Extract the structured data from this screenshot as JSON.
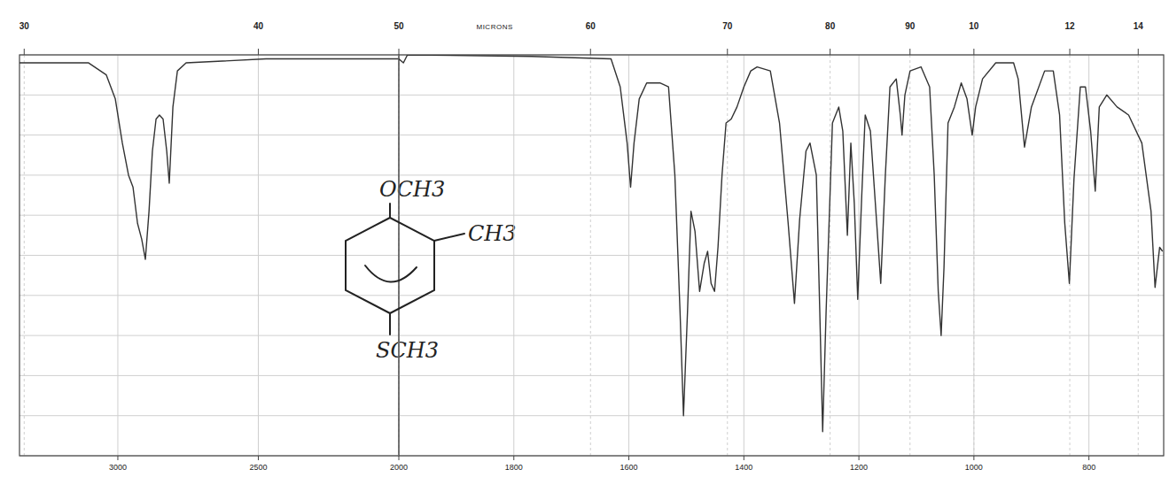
{
  "chart_data": [
    {
      "type": "line",
      "color": "#333333",
      "grid": true,
      "tick_labels": "x",
      "xlim": [
        3350,
        2000
      ],
      "ylim": [
        0,
        100
      ],
      "xticks": [
        3000,
        2500
      ],
      "x2ticks": [
        {
          "value": 3333.3,
          "label": "30"
        },
        {
          "value": 2500,
          "label": "40"
        }
      ],
      "yticks": [
        0,
        10,
        20,
        30,
        40,
        50,
        60,
        70,
        80,
        90,
        100
      ],
      "annotations": [
        "OCH3",
        "CH3",
        "SCH3"
      ],
      "x": [
        3350,
        3104,
        3041,
        3009,
        2984,
        2962,
        2946,
        2930,
        2915,
        2902,
        2889,
        2877,
        2864,
        2852,
        2839,
        2826,
        2817,
        2804,
        2788,
        2757,
        2473,
        2158,
        2000
      ],
      "values": [
        98,
        98,
        95,
        89,
        78,
        70,
        67,
        58,
        54,
        49,
        61,
        76,
        84,
        85,
        84,
        76,
        68,
        87,
        96,
        98,
        99,
        99,
        99
      ]
    },
    {
      "type": "line",
      "color": "#333333",
      "grid": true,
      "tick_labels": "x",
      "xlim": [
        2000,
        670
      ],
      "ylim": [
        0,
        100
      ],
      "xticks": [
        2000,
        1800,
        1600,
        1400,
        1200,
        1000,
        800
      ],
      "x2ticks": [
        {
          "value": 2000,
          "label": "50"
        },
        {
          "value": 1666.7,
          "label": "60"
        },
        {
          "value": 1428.6,
          "label": "70"
        },
        {
          "value": 1250,
          "label": "80"
        },
        {
          "value": 1111.1,
          "label": "90"
        },
        {
          "value": 1000,
          "label": "10"
        },
        {
          "value": 833.3,
          "label": "12"
        },
        {
          "value": 714.3,
          "label": "14"
        }
      ],
      "x2label": "MICRONS",
      "yticks": [
        0,
        10,
        20,
        30,
        40,
        50,
        60,
        70,
        80,
        90,
        100
      ],
      "x": [
        2000,
        1992,
        1985,
        1769,
        1631,
        1615,
        1603,
        1597,
        1591,
        1582,
        1569,
        1546,
        1531,
        1520,
        1511,
        1505,
        1498,
        1492,
        1485,
        1477,
        1469,
        1463,
        1457,
        1451,
        1445,
        1438,
        1431,
        1422,
        1412,
        1400,
        1388,
        1377,
        1354,
        1338,
        1323,
        1312,
        1303,
        1292,
        1285,
        1274,
        1268,
        1263,
        1257,
        1246,
        1235,
        1228,
        1220,
        1214,
        1208,
        1202,
        1195,
        1189,
        1180,
        1169,
        1162,
        1154,
        1146,
        1135,
        1128,
        1125,
        1120,
        1111,
        1092,
        1077,
        1069,
        1062,
        1057,
        1052,
        1045,
        1034,
        1022,
        1012,
        1003,
        997,
        985,
        962,
        931,
        923,
        912,
        900,
        877,
        862,
        851,
        842,
        834,
        826,
        815,
        806,
        797,
        789,
        782,
        769,
        751,
        731,
        708,
        692,
        685,
        677,
        672
      ],
      "values": [
        99,
        98,
        100,
        99.6,
        99,
        92,
        78,
        67,
        78,
        89,
        93,
        93,
        92,
        70,
        36,
        10,
        36,
        61,
        56,
        41,
        48,
        51,
        43,
        41,
        52,
        70,
        83,
        84,
        87,
        92,
        96,
        97,
        96,
        83,
        58,
        38,
        59,
        76,
        78,
        70,
        36,
        6,
        36,
        83,
        87,
        81,
        55,
        78,
        63,
        39,
        65,
        85,
        81,
        58,
        43,
        70,
        92,
        94,
        85,
        80,
        90,
        96,
        97,
        92,
        70,
        41,
        30,
        47,
        83,
        87,
        93,
        89,
        80,
        87,
        94,
        98,
        98,
        94,
        77,
        87,
        96,
        96,
        85,
        58,
        43,
        69,
        92,
        92,
        81,
        66,
        87,
        90,
        87,
        85,
        78,
        61,
        42,
        52,
        51
      ]
    }
  ]
}
